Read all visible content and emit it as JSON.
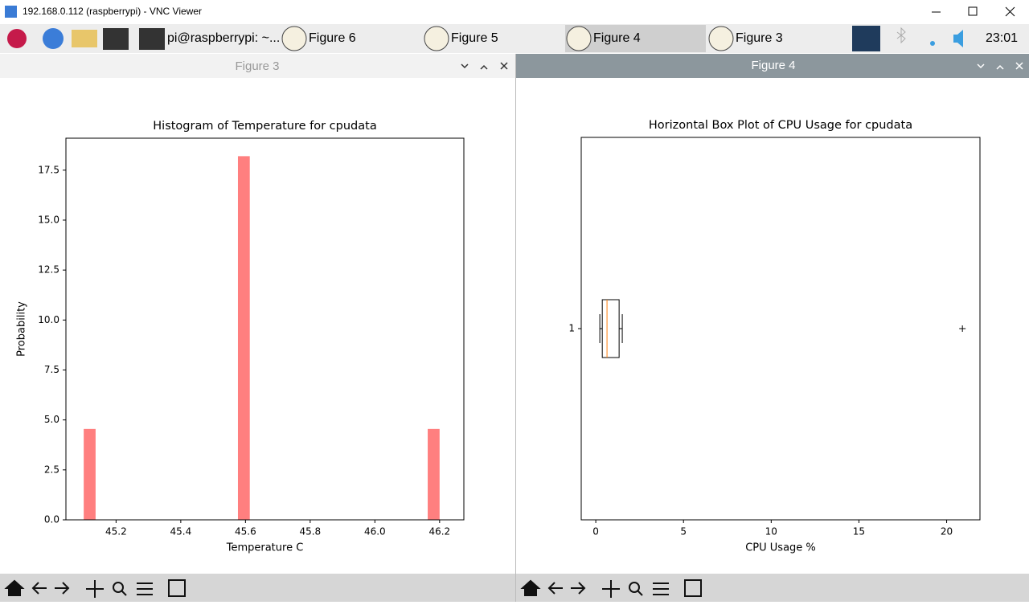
{
  "window": {
    "title": "192.168.0.112 (raspberrypi) - VNC Viewer"
  },
  "taskbar": {
    "items": [
      "pi@raspberrypi: ~...",
      "Figure 6",
      "Figure 5",
      "Figure 4",
      "Figure 3"
    ],
    "clock": "23:01"
  },
  "panels": [
    {
      "title": "Figure 3"
    },
    {
      "title": "Figure 4"
    }
  ],
  "chart_data": [
    {
      "type": "histogram",
      "title": "Histogram of Temperature for cpudata",
      "xlabel": "Temperature C",
      "ylabel": "Probability",
      "color": "#ff7f7f",
      "bins": [
        45.1,
        45.1367,
        45.1733,
        45.21,
        45.2467,
        45.2833,
        45.32,
        45.3567,
        45.3933,
        45.43,
        45.4667,
        45.5033,
        45.54,
        45.5767,
        45.6133,
        45.65,
        45.6867,
        45.7233,
        45.76,
        45.7967,
        45.8333,
        45.87,
        45.9067,
        45.9433,
        45.98,
        46.0167,
        46.0533,
        46.09,
        46.1267,
        46.1633,
        46.2
      ],
      "values": [
        4.55,
        0,
        0,
        0,
        0,
        0,
        0,
        0,
        0,
        0,
        0,
        0,
        0,
        18.2,
        0,
        0,
        0,
        0,
        0,
        0,
        0,
        0,
        0,
        0,
        0,
        0,
        0,
        0,
        0,
        4.55
      ],
      "xlim": [
        45.045,
        46.275
      ],
      "xticks": [
        45.2,
        45.4,
        45.6,
        45.8,
        {
          "value": 46,
          "label": "46.0"
        },
        46.2
      ],
      "ylim": [
        0,
        19.1
      ],
      "yticks": [
        {
          "value": 0,
          "label": "0.0"
        },
        2.5,
        {
          "value": 5,
          "label": "5.0"
        },
        7.5,
        {
          "value": 10,
          "label": "10.0"
        },
        12.5,
        {
          "value": 15,
          "label": "15.0"
        },
        17.5
      ]
    },
    {
      "type": "boxplot",
      "title": "Horizontal Box Plot of CPU Usage for cpudata",
      "xlabel": "CPU Usage %",
      "categories": [
        "1"
      ],
      "box_color": "#000000",
      "median_color": "#ff7f0e",
      "series": [
        {
          "whislo": 0.23,
          "q1": 0.37,
          "med": 0.64,
          "q3": 1.33,
          "whishi": 1.51,
          "fliers": [
            20.9
          ]
        }
      ],
      "xlim": [
        -0.83,
        21.9
      ],
      "xticks": [
        0,
        5,
        10,
        15,
        20
      ]
    }
  ]
}
